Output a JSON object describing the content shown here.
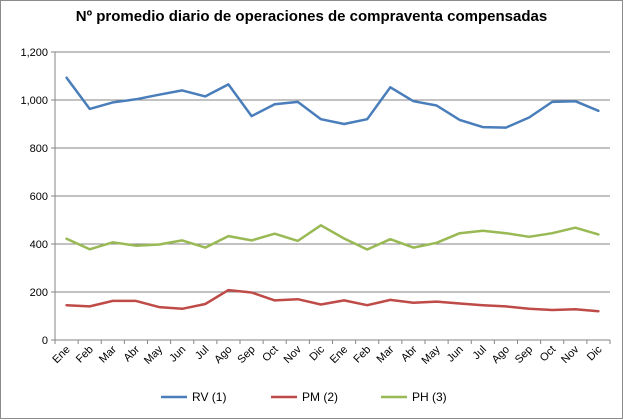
{
  "chart_data": {
    "type": "line",
    "title": "Nº promedio diario de operaciones de compraventa compensadas",
    "xlabel": "",
    "ylabel": "",
    "ylim": [
      0,
      1200
    ],
    "yticks": [
      "0",
      "200",
      "400",
      "600",
      "800",
      "1,000",
      "1,200"
    ],
    "yticks_values": [
      0,
      200,
      400,
      600,
      800,
      1000,
      1200
    ],
    "grid": true,
    "legend_position": "bottom",
    "categories": [
      "Ene",
      "Feb",
      "Mar",
      "Abr",
      "May",
      "Jun",
      "Jul",
      "Ago",
      "Sep",
      "Oct",
      "Nov",
      "Dic",
      "Ene",
      "Feb",
      "Mar",
      "Abr",
      "May",
      "Jun",
      "Jul",
      "Ago",
      "Sep",
      "Oct",
      "Nov",
      "Dic"
    ],
    "series": [
      {
        "name": "RV (1)",
        "color": "#4a7ebb",
        "values": [
          1093,
          963,
          990,
          1003,
          1022,
          1040,
          1015,
          1065,
          933,
          982,
          992,
          920,
          900,
          920,
          1053,
          995,
          977,
          917,
          887,
          885,
          927,
          992,
          995,
          955
        ]
      },
      {
        "name": "PM (2)",
        "color": "#be4b48",
        "values": [
          145,
          140,
          163,
          163,
          137,
          130,
          150,
          208,
          198,
          165,
          170,
          148,
          165,
          145,
          167,
          155,
          160,
          152,
          145,
          140,
          130,
          125,
          128,
          120
        ]
      },
      {
        "name": "PH (3)",
        "color": "#98b954",
        "values": [
          422,
          378,
          407,
          393,
          398,
          415,
          385,
          433,
          415,
          443,
          413,
          478,
          423,
          377,
          420,
          385,
          405,
          445,
          455,
          445,
          430,
          445,
          468,
          440
        ]
      }
    ]
  }
}
